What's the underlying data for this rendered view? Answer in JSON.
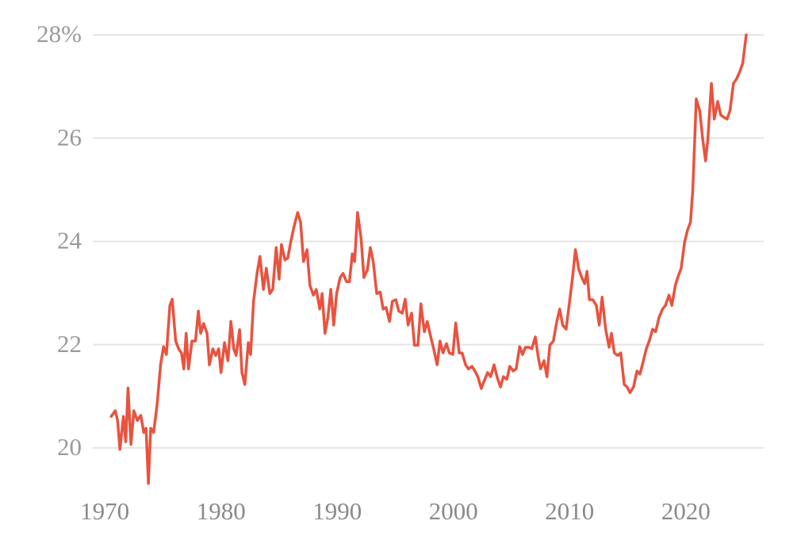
{
  "chart_data": {
    "type": "line",
    "x": [
      1970.55,
      1970.9,
      1971.1,
      1971.3,
      1971.6,
      1971.8,
      1972.0,
      1972.25,
      1972.5,
      1972.8,
      1973.1,
      1973.35,
      1973.55,
      1973.75,
      1973.95,
      1974.2,
      1974.5,
      1974.8,
      1975.05,
      1975.3,
      1975.6,
      1975.8,
      1976.1,
      1976.35,
      1976.6,
      1976.8,
      1977.0,
      1977.2,
      1977.5,
      1977.8,
      1978.05,
      1978.25,
      1978.5,
      1978.8,
      1979.0,
      1979.3,
      1979.55,
      1979.8,
      1980.0,
      1980.3,
      1980.6,
      1980.85,
      1981.1,
      1981.3,
      1981.6,
      1981.8,
      1982.05,
      1982.35,
      1982.55,
      1982.8,
      1983.1,
      1983.35,
      1983.65,
      1983.9,
      1984.2,
      1984.45,
      1984.75,
      1985.0,
      1985.2,
      1985.5,
      1985.75,
      1986.0,
      1986.3,
      1986.6,
      1986.85,
      1987.1,
      1987.4,
      1987.65,
      1987.95,
      1988.2,
      1988.5,
      1988.7,
      1988.95,
      1989.2,
      1989.45,
      1989.7,
      1989.95,
      1990.25,
      1990.5,
      1990.8,
      1991.05,
      1991.3,
      1991.5,
      1991.75,
      1992.05,
      1992.3,
      1992.6,
      1992.85,
      1993.1,
      1993.4,
      1993.7,
      1993.95,
      1994.2,
      1994.5,
      1994.75,
      1995.05,
      1995.3,
      1995.6,
      1995.85,
      1996.1,
      1996.4,
      1996.65,
      1996.95,
      1997.2,
      1997.5,
      1997.75,
      1998.05,
      1998.3,
      1998.6,
      1998.85,
      1999.1,
      1999.4,
      1999.65,
      1999.95,
      2000.2,
      2000.5,
      2000.75,
      2001.05,
      2001.3,
      2001.6,
      2001.85,
      2002.1,
      2002.4,
      2002.65,
      2002.95,
      2003.2,
      2003.5,
      2003.75,
      2004.05,
      2004.3,
      2004.6,
      2004.85,
      2005.15,
      2005.4,
      2005.7,
      2005.95,
      2006.2,
      2006.5,
      2006.75,
      2007.05,
      2007.3,
      2007.5,
      2007.8,
      2008.05,
      2008.3,
      2008.6,
      2008.9,
      2009.15,
      2009.4,
      2009.7,
      2010.0,
      2010.25,
      2010.5,
      2010.8,
      2011.05,
      2011.3,
      2011.5,
      2011.7,
      2012.0,
      2012.3,
      2012.55,
      2012.8,
      2013.1,
      2013.4,
      2013.6,
      2013.85,
      2014.15,
      2014.4,
      2014.7,
      2014.95,
      2015.2,
      2015.5,
      2015.8,
      2016.05,
      2016.3,
      2016.6,
      2016.85,
      2017.15,
      2017.4,
      2017.7,
      2018.0,
      2018.25,
      2018.55,
      2018.8,
      2019.1,
      2019.35,
      2019.6,
      2019.9,
      2020.15,
      2020.4,
      2020.6,
      2020.9,
      2021.2,
      2021.45,
      2021.7,
      2021.9,
      2022.2,
      2022.45,
      2022.75,
      2023.0,
      2023.3,
      2023.55,
      2023.8,
      2024.1,
      2024.35,
      2024.65,
      2024.9,
      2025.2
    ],
    "series": [
      {
        "color": "#e8533f",
        "values": [
          20.61,
          20.72,
          20.53,
          19.97,
          20.61,
          20.12,
          21.16,
          20.07,
          20.72,
          20.53,
          20.63,
          20.3,
          20.38,
          19.31,
          20.38,
          20.3,
          20.84,
          21.61,
          21.96,
          21.81,
          22.76,
          22.88,
          22.07,
          21.92,
          21.84,
          21.53,
          22.22,
          21.53,
          22.07,
          22.07,
          22.65,
          22.22,
          22.41,
          22.22,
          21.61,
          21.92,
          21.79,
          21.92,
          21.46,
          22.04,
          21.69,
          22.45,
          21.92,
          21.79,
          22.29,
          21.46,
          21.23,
          22.04,
          21.81,
          22.84,
          23.38,
          23.71,
          23.07,
          23.48,
          22.99,
          23.07,
          23.88,
          23.27,
          23.94,
          23.64,
          23.68,
          23.99,
          24.3,
          24.56,
          24.37,
          23.61,
          23.84,
          23.15,
          22.96,
          23.07,
          22.69,
          22.99,
          22.22,
          22.53,
          23.07,
          22.38,
          22.99,
          23.3,
          23.38,
          23.22,
          23.22,
          23.76,
          23.61,
          24.56,
          24.07,
          23.3,
          23.45,
          23.88,
          23.61,
          22.99,
          23.02,
          22.69,
          22.72,
          22.45,
          22.84,
          22.87,
          22.65,
          22.61,
          22.88,
          22.38,
          22.61,
          21.99,
          21.99,
          22.79,
          22.25,
          22.45,
          22.15,
          21.92,
          21.61,
          22.07,
          21.84,
          22.02,
          21.84,
          21.81,
          22.42,
          21.84,
          21.84,
          21.61,
          21.53,
          21.58,
          21.49,
          21.38,
          21.15,
          21.3,
          21.46,
          21.38,
          21.61,
          21.38,
          21.18,
          21.38,
          21.33,
          21.58,
          21.49,
          21.53,
          21.96,
          21.81,
          21.95,
          21.95,
          21.92,
          22.15,
          21.76,
          21.53,
          21.69,
          21.38,
          21.99,
          22.07,
          22.45,
          22.69,
          22.38,
          22.3,
          22.84,
          23.3,
          23.84,
          23.45,
          23.3,
          23.18,
          23.42,
          22.87,
          22.87,
          22.76,
          22.38,
          22.92,
          22.3,
          21.95,
          22.22,
          21.84,
          21.79,
          21.84,
          21.23,
          21.18,
          21.07,
          21.18,
          21.49,
          21.43,
          21.64,
          21.92,
          22.07,
          22.3,
          22.25,
          22.53,
          22.69,
          22.76,
          22.96,
          22.76,
          23.15,
          23.33,
          23.48,
          23.99,
          24.22,
          24.37,
          24.99,
          26.76,
          26.53,
          25.99,
          25.56,
          25.99,
          27.06,
          26.37,
          26.71,
          26.45,
          26.4,
          26.37,
          26.53,
          27.06,
          27.14,
          27.29,
          27.45,
          28.0
        ]
      }
    ],
    "xlim": [
      1967.6,
      2026.7
    ],
    "xticks": [
      1970,
      1980,
      1990,
      2000,
      2010,
      2020
    ],
    "ylim": [
      19.2,
      28
    ],
    "yticks": [
      20,
      22,
      24,
      26,
      {
        "value": 28,
        "label": "28%"
      }
    ],
    "grid": true
  }
}
